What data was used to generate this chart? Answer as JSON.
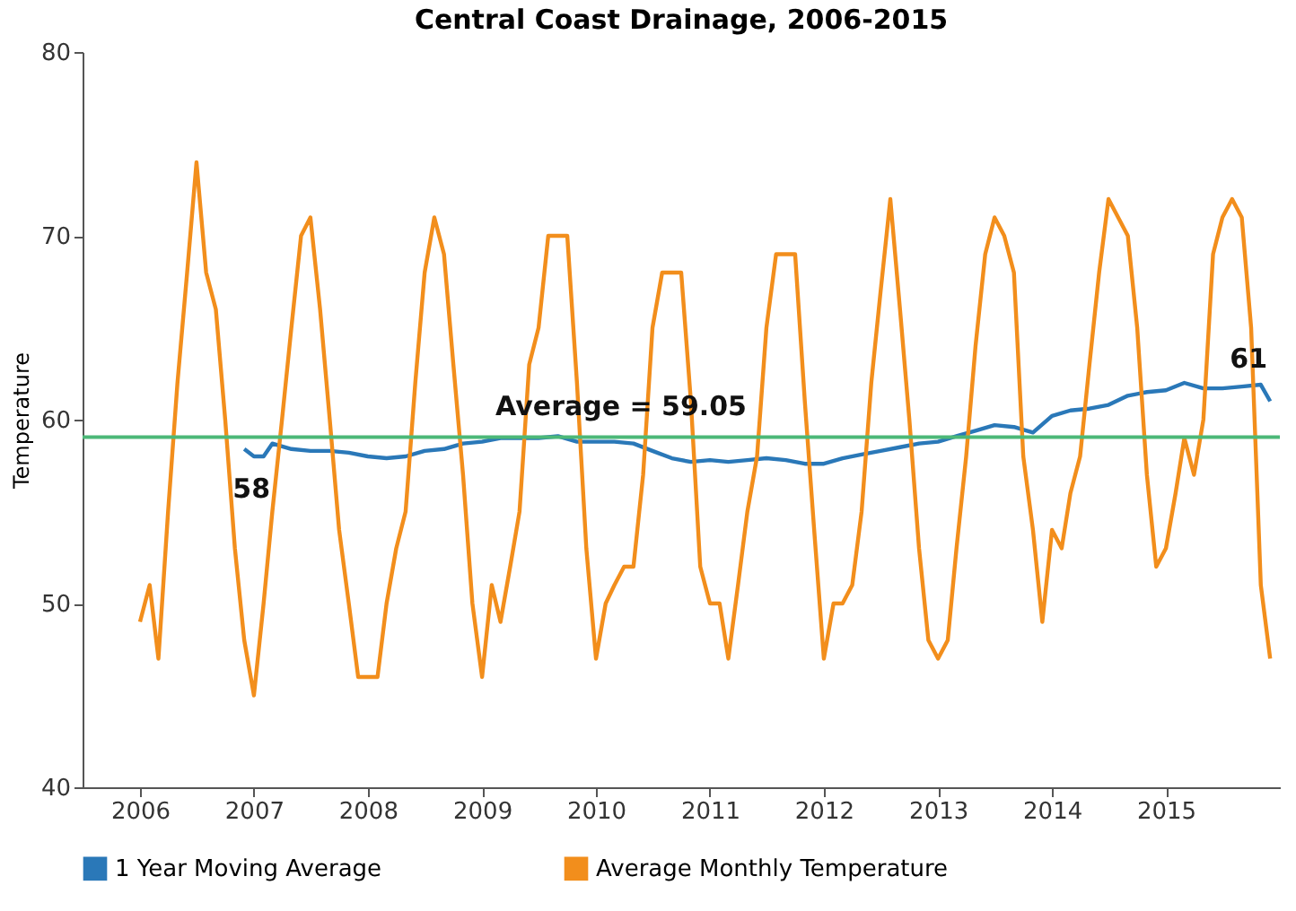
{
  "chart_data": {
    "type": "line",
    "title": "Central Coast Drainage, 2006-2015",
    "ylabel": "Temperature",
    "x": [
      "2006-01",
      "2006-02",
      "2006-03",
      "2006-04",
      "2006-05",
      "2006-06",
      "2006-07",
      "2006-08",
      "2006-09",
      "2006-10",
      "2006-11",
      "2006-12",
      "2007-01",
      "2007-02",
      "2007-03",
      "2007-04",
      "2007-05",
      "2007-06",
      "2007-07",
      "2007-08",
      "2007-09",
      "2007-10",
      "2007-11",
      "2007-12",
      "2008-01",
      "2008-02",
      "2008-03",
      "2008-04",
      "2008-05",
      "2008-06",
      "2008-07",
      "2008-08",
      "2008-09",
      "2008-10",
      "2008-11",
      "2008-12",
      "2009-01",
      "2009-02",
      "2009-03",
      "2009-04",
      "2009-05",
      "2009-06",
      "2009-07",
      "2009-08",
      "2009-09",
      "2009-10",
      "2009-11",
      "2009-12",
      "2010-01",
      "2010-02",
      "2010-03",
      "2010-04",
      "2010-05",
      "2010-06",
      "2010-07",
      "2010-08",
      "2010-09",
      "2010-10",
      "2010-11",
      "2010-12",
      "2011-01",
      "2011-02",
      "2011-03",
      "2011-04",
      "2011-05",
      "2011-06",
      "2011-07",
      "2011-08",
      "2011-09",
      "2011-10",
      "2011-11",
      "2011-12",
      "2012-01",
      "2012-02",
      "2012-03",
      "2012-04",
      "2012-05",
      "2012-06",
      "2012-07",
      "2012-08",
      "2012-09",
      "2012-10",
      "2012-11",
      "2012-12",
      "2013-01",
      "2013-02",
      "2013-03",
      "2013-04",
      "2013-05",
      "2013-06",
      "2013-07",
      "2013-08",
      "2013-09",
      "2013-10",
      "2013-11",
      "2013-12",
      "2014-01",
      "2014-02",
      "2014-03",
      "2014-04",
      "2014-05",
      "2014-06",
      "2014-07",
      "2014-08",
      "2014-09",
      "2014-10",
      "2014-11",
      "2014-12",
      "2015-01",
      "2015-02",
      "2015-03",
      "2015-04",
      "2015-05",
      "2015-06",
      "2015-07",
      "2015-08",
      "2015-09",
      "2015-10",
      "2015-11",
      "2015-12"
    ],
    "series": [
      {
        "name": "1 Year Moving Average",
        "color": "#2a78b8",
        "x": [
          "2006-12",
          "2007-01",
          "2007-02",
          "2007-03",
          "2007-05",
          "2007-07",
          "2007-09",
          "2007-11",
          "2008-01",
          "2008-03",
          "2008-05",
          "2008-07",
          "2008-09",
          "2008-11",
          "2009-01",
          "2009-03",
          "2009-05",
          "2009-07",
          "2009-09",
          "2009-11",
          "2010-01",
          "2010-03",
          "2010-05",
          "2010-07",
          "2010-09",
          "2010-11",
          "2011-01",
          "2011-03",
          "2011-05",
          "2011-07",
          "2011-09",
          "2011-11",
          "2012-01",
          "2012-03",
          "2012-05",
          "2012-07",
          "2012-09",
          "2012-11",
          "2013-01",
          "2013-03",
          "2013-05",
          "2013-07",
          "2013-09",
          "2013-11",
          "2014-01",
          "2014-03",
          "2014-05",
          "2014-07",
          "2014-09",
          "2014-11",
          "2015-01",
          "2015-03",
          "2015-05",
          "2015-07",
          "2015-09",
          "2015-11",
          "2015-12"
        ],
        "values": [
          58.4,
          58.0,
          58.0,
          58.7,
          58.4,
          58.3,
          58.3,
          58.2,
          58.0,
          57.9,
          58.0,
          58.3,
          58.4,
          58.7,
          58.8,
          59.0,
          59.0,
          59.0,
          59.1,
          58.8,
          58.8,
          58.8,
          58.7,
          58.3,
          57.9,
          57.7,
          57.8,
          57.7,
          57.8,
          57.9,
          57.8,
          57.6,
          57.6,
          57.9,
          58.1,
          58.3,
          58.5,
          58.7,
          58.8,
          59.1,
          59.4,
          59.7,
          59.6,
          59.3,
          60.2,
          60.5,
          60.6,
          60.8,
          61.3,
          61.5,
          61.6,
          62.0,
          61.7,
          61.7,
          61.8,
          61.9,
          61.0
        ]
      },
      {
        "name": "Average Monthly Temperature",
        "color": "#f28e1c",
        "values": [
          49,
          51,
          47,
          55,
          62,
          68,
          74,
          68,
          66,
          60,
          53,
          48,
          45,
          50,
          55,
          60,
          65,
          70,
          71,
          66,
          60,
          54,
          50,
          46,
          46,
          46,
          50,
          53,
          55,
          62,
          68,
          71,
          69,
          63,
          57,
          50,
          46,
          51,
          49,
          52,
          55,
          63,
          65,
          70,
          70,
          70,
          62,
          53,
          47,
          50,
          51,
          52,
          52,
          57,
          65,
          68,
          68,
          68,
          61,
          52,
          50,
          50,
          47,
          51,
          55,
          58,
          65,
          69,
          69,
          69,
          61,
          54,
          47,
          50,
          50,
          51,
          55,
          62,
          67,
          72,
          66,
          60,
          53,
          48,
          47,
          48,
          53,
          58,
          64,
          69,
          71,
          70,
          68,
          58,
          54,
          49,
          54,
          53,
          56,
          58,
          63,
          68,
          72,
          71,
          70,
          65,
          57,
          52,
          53,
          56,
          59,
          57,
          60,
          69,
          71,
          72,
          71,
          65,
          51,
          47
        ]
      }
    ],
    "xlim": [
      "2005-07",
      "2016-01"
    ],
    "xticks": [
      "2006",
      "2007",
      "2008",
      "2009",
      "2010",
      "2011",
      "2012",
      "2013",
      "2014",
      "2015"
    ],
    "ylim": [
      40,
      80
    ],
    "yticks": [
      40,
      50,
      60,
      70,
      80
    ],
    "ref_lines": [
      {
        "axis": "y",
        "value": 59.05,
        "label": "Average = 59.05",
        "color": "#4cb878"
      }
    ],
    "annotations": [
      {
        "text": "58",
        "x": "2006-12",
        "y": 58.4
      },
      {
        "text": "61",
        "x": "2015-12",
        "y": 61.0
      }
    ],
    "grid": false,
    "legend": "bottom",
    "marker": "none",
    "line_style": "solid"
  }
}
